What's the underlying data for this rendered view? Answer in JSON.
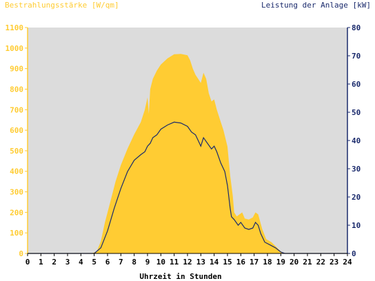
{
  "chart_data": {
    "type": "area",
    "title_left": "Bestrahlungsstärke [W/qm]",
    "title_right": "Leistung der Anlage [kW]",
    "xlabel": "Uhrzeit in Stunden",
    "xlim": [
      0,
      24
    ],
    "x_ticks": [
      "0",
      "1",
      "2",
      "3",
      "4",
      "5",
      "6",
      "7",
      "8",
      "9",
      "10",
      "11",
      "12",
      "13",
      "14",
      "15",
      "16",
      "17",
      "18",
      "19",
      "20",
      "21",
      "22",
      "23",
      "24"
    ],
    "y_left": {
      "lim": [
        0,
        1100
      ],
      "ticks": [
        "0",
        "100",
        "200",
        "300",
        "400",
        "500",
        "600",
        "700",
        "800",
        "900",
        "1000",
        "1100"
      ]
    },
    "y_right": {
      "lim": [
        0,
        80
      ],
      "ticks": [
        "0",
        "10",
        "20",
        "30",
        "40",
        "50",
        "60",
        "70",
        "80"
      ]
    },
    "grid": false,
    "colors": {
      "irradiance": "#ffcc33",
      "power": "#1a2a6c",
      "plot_bg": "#dcdcdc",
      "left_axis": "#ffcc33",
      "right_axis": "#1a2a6c"
    },
    "series": [
      {
        "axis": "left",
        "points": [
          [
            0,
            0
          ],
          [
            4.8,
            0
          ],
          [
            5.2,
            10
          ],
          [
            5.5,
            60
          ],
          [
            5.8,
            150
          ],
          [
            6.2,
            250
          ],
          [
            6.6,
            350
          ],
          [
            7.0,
            430
          ],
          [
            7.5,
            510
          ],
          [
            8.0,
            580
          ],
          [
            8.5,
            640
          ],
          [
            8.8,
            700
          ],
          [
            9.0,
            760
          ],
          [
            9.1,
            680
          ],
          [
            9.2,
            800
          ],
          [
            9.4,
            850
          ],
          [
            9.7,
            890
          ],
          [
            10.0,
            920
          ],
          [
            10.5,
            950
          ],
          [
            11.0,
            970
          ],
          [
            11.5,
            972
          ],
          [
            12.0,
            965
          ],
          [
            12.2,
            940
          ],
          [
            12.4,
            900
          ],
          [
            12.6,
            870
          ],
          [
            12.8,
            850
          ],
          [
            13.0,
            830
          ],
          [
            13.2,
            880
          ],
          [
            13.4,
            850
          ],
          [
            13.6,
            780
          ],
          [
            13.8,
            740
          ],
          [
            14.0,
            750
          ],
          [
            14.2,
            700
          ],
          [
            14.5,
            640
          ],
          [
            14.7,
            600
          ],
          [
            15.0,
            520
          ],
          [
            15.2,
            380
          ],
          [
            15.4,
            280
          ],
          [
            15.5,
            200
          ],
          [
            15.7,
            180
          ],
          [
            15.9,
            190
          ],
          [
            16.1,
            200
          ],
          [
            16.3,
            170
          ],
          [
            16.6,
            165
          ],
          [
            16.9,
            175
          ],
          [
            17.1,
            200
          ],
          [
            17.3,
            190
          ],
          [
            17.6,
            120
          ],
          [
            17.9,
            70
          ],
          [
            18.3,
            55
          ],
          [
            18.7,
            30
          ],
          [
            19.0,
            10
          ],
          [
            19.3,
            0
          ],
          [
            24,
            0
          ]
        ]
      },
      {
        "axis": "right",
        "points": [
          [
            0,
            0
          ],
          [
            5.0,
            0
          ],
          [
            5.5,
            2
          ],
          [
            6.0,
            8
          ],
          [
            6.5,
            16
          ],
          [
            7.0,
            23
          ],
          [
            7.5,
            29
          ],
          [
            8.0,
            33
          ],
          [
            8.5,
            35
          ],
          [
            8.8,
            36
          ],
          [
            9.0,
            38
          ],
          [
            9.2,
            39
          ],
          [
            9.4,
            41
          ],
          [
            9.7,
            42
          ],
          [
            10.0,
            44
          ],
          [
            10.5,
            45.5
          ],
          [
            11.0,
            46.5
          ],
          [
            11.5,
            46.2
          ],
          [
            12.0,
            45
          ],
          [
            12.3,
            43
          ],
          [
            12.6,
            42
          ],
          [
            12.8,
            40
          ],
          [
            13.0,
            38
          ],
          [
            13.2,
            41
          ],
          [
            13.5,
            39
          ],
          [
            13.8,
            37
          ],
          [
            14.0,
            38
          ],
          [
            14.2,
            36
          ],
          [
            14.5,
            32
          ],
          [
            14.8,
            29
          ],
          [
            15.0,
            24
          ],
          [
            15.2,
            16
          ],
          [
            15.3,
            13
          ],
          [
            15.5,
            12
          ],
          [
            15.8,
            10
          ],
          [
            16.0,
            11
          ],
          [
            16.3,
            9
          ],
          [
            16.6,
            8.5
          ],
          [
            16.9,
            9
          ],
          [
            17.1,
            11
          ],
          [
            17.3,
            10
          ],
          [
            17.5,
            7
          ],
          [
            17.8,
            4
          ],
          [
            18.2,
            3
          ],
          [
            18.6,
            2
          ],
          [
            19.0,
            0.5
          ],
          [
            19.3,
            0
          ],
          [
            24,
            0
          ]
        ]
      }
    ]
  }
}
